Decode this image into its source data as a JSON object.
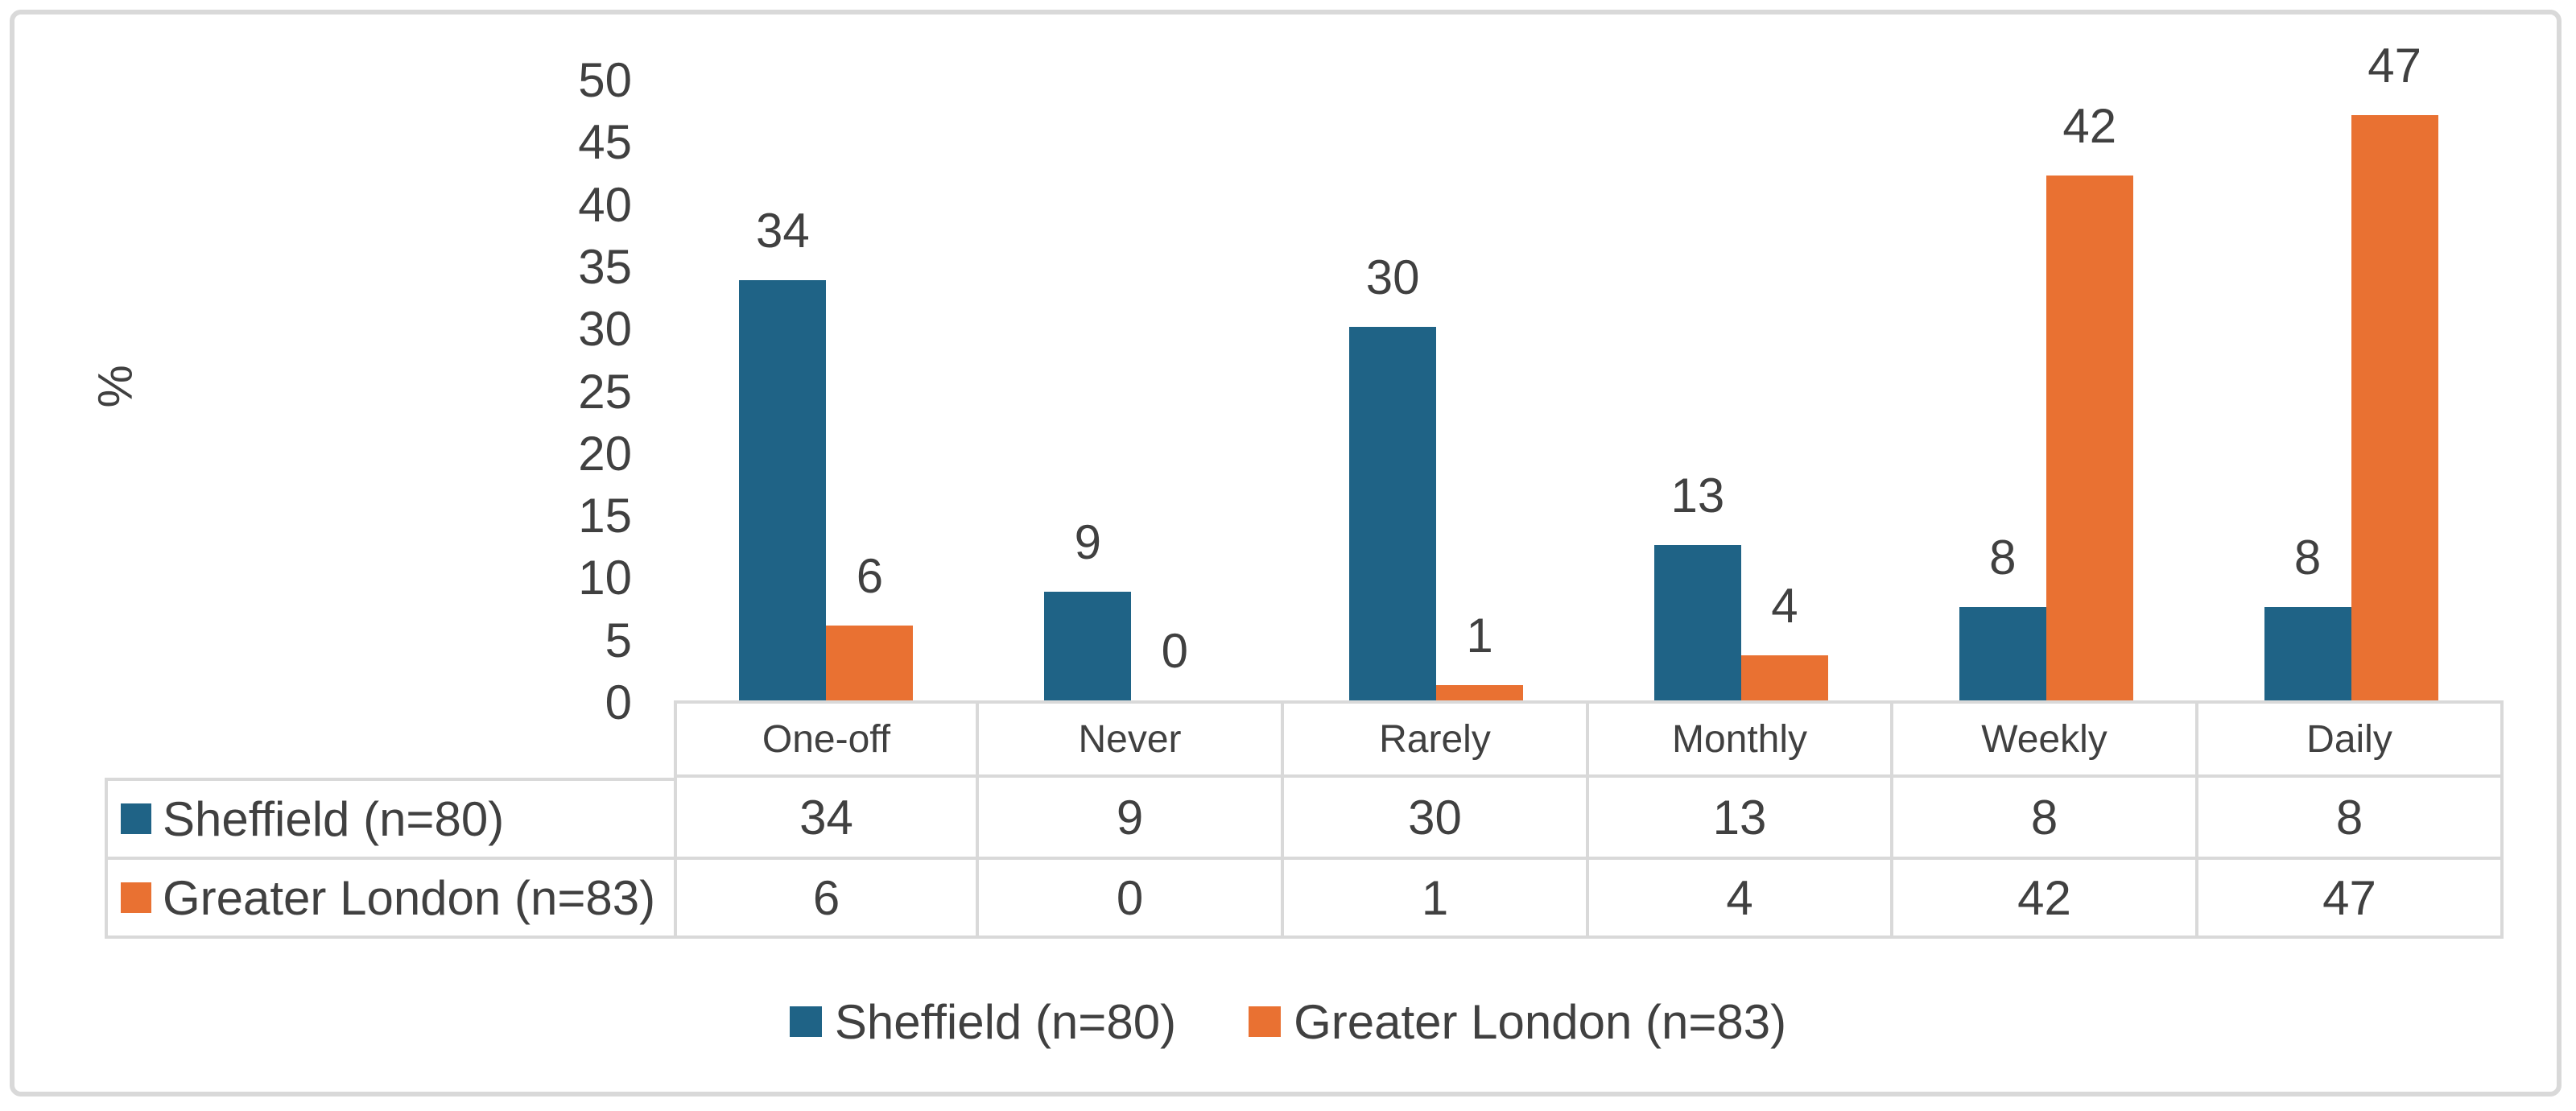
{
  "chart_data": {
    "type": "bar",
    "title": "",
    "xlabel": "",
    "ylabel": "%",
    "ylim": [
      0,
      50
    ],
    "yticks": [
      0,
      5,
      10,
      15,
      20,
      25,
      30,
      35,
      40,
      45,
      50
    ],
    "grid": "horizontal",
    "legend_position": "bottom",
    "has_data_table": true,
    "gridline_color": "#D9D9D9",
    "table_border_color": "#D9D9D9",
    "text_color": "#404040",
    "categories": [
      "One-off",
      "Never",
      "Rarely",
      "Monthly",
      "Weekly",
      "Daily"
    ],
    "series": [
      {
        "name": "Sheffield (n=80)",
        "color": "#1F6386",
        "values": [
          34,
          9,
          30,
          13,
          8,
          8
        ],
        "precise_heights": [
          33.75,
          8.75,
          30,
          12.5,
          7.5,
          7.5
        ]
      },
      {
        "name": "Greater London (n=83)",
        "color": "#E97132",
        "values": [
          6,
          0,
          1,
          4,
          42,
          47
        ],
        "precise_heights": [
          6.0,
          0,
          1.2,
          3.6,
          42.2,
          47.0
        ]
      }
    ]
  }
}
